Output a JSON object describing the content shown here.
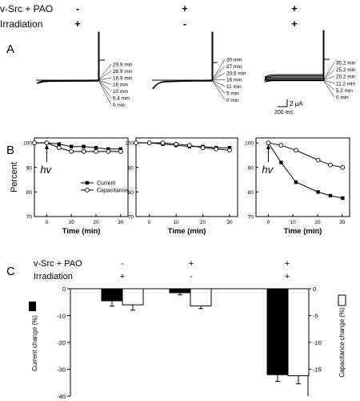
{
  "header": {
    "row1_label": "v-Src + PAO",
    "row2_label": "Irradiation",
    "signs_row1": [
      "-",
      "+",
      "+"
    ],
    "signs_row2": [
      "+",
      "-",
      "+"
    ]
  },
  "panel_labels": {
    "a": "A",
    "b": "B",
    "c": "C"
  },
  "traces": [
    {
      "labels": [
        "29.9 min",
        "28.9 min",
        "19.9 min",
        "16 min",
        "10 min",
        "5.4 min",
        "0 min"
      ]
    },
    {
      "labels": [
        "30 min",
        "27 min",
        "20.5 min",
        "16 min",
        "11 min",
        "5 min",
        "0 min"
      ]
    },
    {
      "labels": [
        "30.2 min",
        "25.2 min",
        "20.2 min",
        "11.2 min",
        "5.2 min",
        "0 min"
      ]
    }
  ],
  "scalebar": {
    "current": "2 μA",
    "time": "200 ms"
  },
  "chart_data": [
    {
      "type": "line",
      "panel": "B-left",
      "xlabel": "Time (min)",
      "ylabel": "Percent",
      "xlim": [
        -5,
        33
      ],
      "ylim": [
        70,
        102
      ],
      "xticks": [
        0,
        10,
        20,
        30
      ],
      "yticks": [
        70,
        80,
        90,
        100
      ],
      "annotation": "hv",
      "series": [
        {
          "name": "Current",
          "marker": "filled-square",
          "x": [
            -5,
            0,
            5,
            10,
            15,
            20,
            25,
            30
          ],
          "y": [
            100,
            100,
            99.5,
            98.5,
            98.5,
            98,
            97.5,
            97.5
          ]
        },
        {
          "name": "Capacitance",
          "marker": "open-circle",
          "x": [
            -5,
            0,
            5,
            10,
            15,
            20,
            25,
            30
          ],
          "y": [
            100,
            100,
            98,
            96.5,
            96.5,
            96.5,
            96.5,
            96.5
          ]
        }
      ]
    },
    {
      "type": "line",
      "panel": "B-middle",
      "xlabel": "Time (min)",
      "xlim": [
        -5,
        33
      ],
      "ylim": [
        70,
        102
      ],
      "xticks": [
        0,
        10,
        20,
        30
      ],
      "yticks": [
        70,
        80,
        90,
        100
      ],
      "series": [
        {
          "marker": "filled-square",
          "x": [
            -5,
            0,
            5,
            10,
            15,
            20,
            25,
            30
          ],
          "y": [
            100,
            100,
            99.5,
            99,
            98.5,
            98.5,
            98,
            98
          ]
        },
        {
          "marker": "open-circle",
          "x": [
            -5,
            0,
            5,
            10,
            15,
            20,
            25,
            30
          ],
          "y": [
            100,
            100,
            100,
            99.5,
            99,
            98,
            97.5,
            97
          ]
        }
      ]
    },
    {
      "type": "line",
      "panel": "B-right",
      "xlabel": "Time (min)",
      "xlim": [
        -5,
        33
      ],
      "ylim": [
        70,
        102
      ],
      "xticks": [
        0,
        10,
        20,
        30
      ],
      "yticks": [
        70,
        80,
        90,
        100
      ],
      "annotation": "hv",
      "series": [
        {
          "marker": "filled-square",
          "x": [
            0,
            5.2,
            11.2,
            20.2,
            25.2,
            30.2
          ],
          "y": [
            100,
            92,
            84,
            80,
            78.5,
            77.5
          ]
        },
        {
          "marker": "open-circle",
          "x": [
            0,
            5.2,
            11.2,
            20.2,
            25.2,
            30.2
          ],
          "y": [
            100,
            99,
            97,
            93,
            91,
            90
          ]
        }
      ]
    },
    {
      "type": "bar",
      "panel": "C",
      "row1_label": "v-Src + PAO",
      "row2_label": "Irradiation",
      "signs_row1": [
        "-",
        "+",
        "+"
      ],
      "signs_row2": [
        "+",
        "-",
        "+"
      ],
      "ylabel": "Current change (%)",
      "y2label": "Capacitance change (%)",
      "ylim": [
        -40,
        0
      ],
      "y2lim": [
        -20,
        0
      ],
      "yticks": [
        0,
        -10,
        -20,
        -30,
        -40
      ],
      "y2ticks": [
        0,
        -5,
        -10,
        -15
      ],
      "series": [
        {
          "name": "Current",
          "axis": "left",
          "fill": "#000000",
          "values": [
            -4.5,
            -1.5,
            -32
          ],
          "errors": [
            2.0,
            0.8,
            2.5
          ]
        },
        {
          "name": "Capacitance",
          "axis": "right",
          "fill": "#ffffff",
          "values": [
            -3.0,
            -3.2,
            -16.2
          ],
          "errors": [
            1.0,
            0.5,
            1.5
          ]
        }
      ]
    }
  ]
}
